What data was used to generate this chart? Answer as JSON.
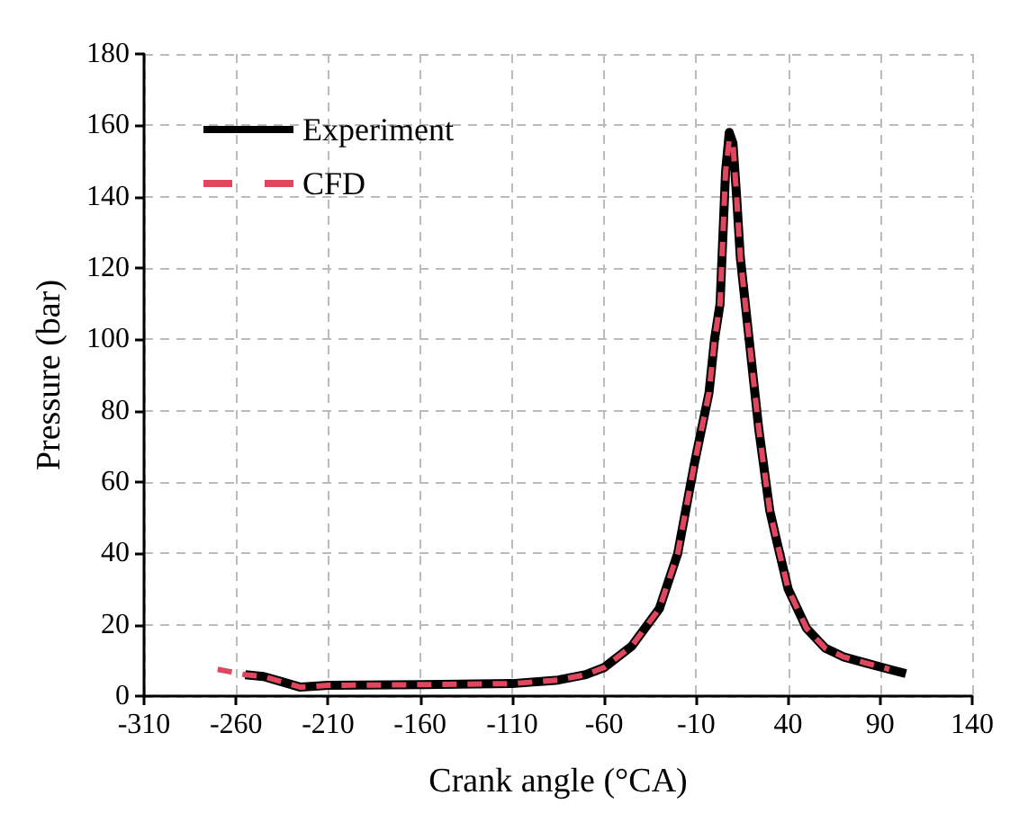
{
  "chart_data": {
    "type": "line",
    "xlabel": "Crank angle (°CA)",
    "ylabel": "Pressure (bar)",
    "xlim": [
      -310,
      140
    ],
    "xticks": [
      -310,
      -260,
      -210,
      -160,
      -110,
      -60,
      -10,
      40,
      90,
      140
    ],
    "ylim": [
      0,
      180
    ],
    "yticks": [
      0,
      20,
      40,
      60,
      80,
      100,
      120,
      140,
      160,
      180
    ],
    "grid": true,
    "legend": "top left",
    "series": [
      {
        "name": "Experiment",
        "color": "#000000",
        "line_style": "solid",
        "x": [
          -255,
          -245,
          -235,
          -225,
          -210,
          -160,
          -110,
          -85,
          -70,
          -60,
          -45,
          -30,
          -20,
          -11,
          -3,
          0,
          3,
          6,
          8,
          10,
          12,
          14,
          19,
          24,
          30,
          34,
          40,
          50,
          60,
          70,
          82,
          95,
          104
        ],
        "values": [
          6,
          5.5,
          4,
          2.5,
          3,
          3.2,
          3.5,
          4.5,
          6,
          8,
          14,
          24.5,
          40,
          65,
          85,
          100,
          110,
          147,
          158,
          155,
          140,
          123,
          99,
          75,
          52,
          43,
          30,
          19,
          13.5,
          11,
          9.3,
          7.5,
          6.3
        ]
      },
      {
        "name": "CFD",
        "color": "#e0475e",
        "line_style": "dashed",
        "x": [
          -270,
          -255,
          -245,
          -235,
          -225,
          -210,
          -160,
          -110,
          -85,
          -70,
          -60,
          -45,
          -30,
          -20,
          -11,
          -3,
          0,
          3,
          6,
          8,
          10,
          12,
          14,
          19,
          24,
          30,
          34,
          40,
          50,
          60,
          70,
          82,
          95
        ],
        "values": [
          7.5,
          6,
          5.5,
          4,
          2.5,
          3,
          3.2,
          3.5,
          4.5,
          6,
          8,
          14,
          24.5,
          40,
          65,
          85,
          100,
          110,
          147,
          156,
          155,
          140,
          123,
          99,
          75,
          52,
          43,
          30,
          19,
          13.5,
          11,
          9.3,
          7.5
        ]
      }
    ]
  }
}
